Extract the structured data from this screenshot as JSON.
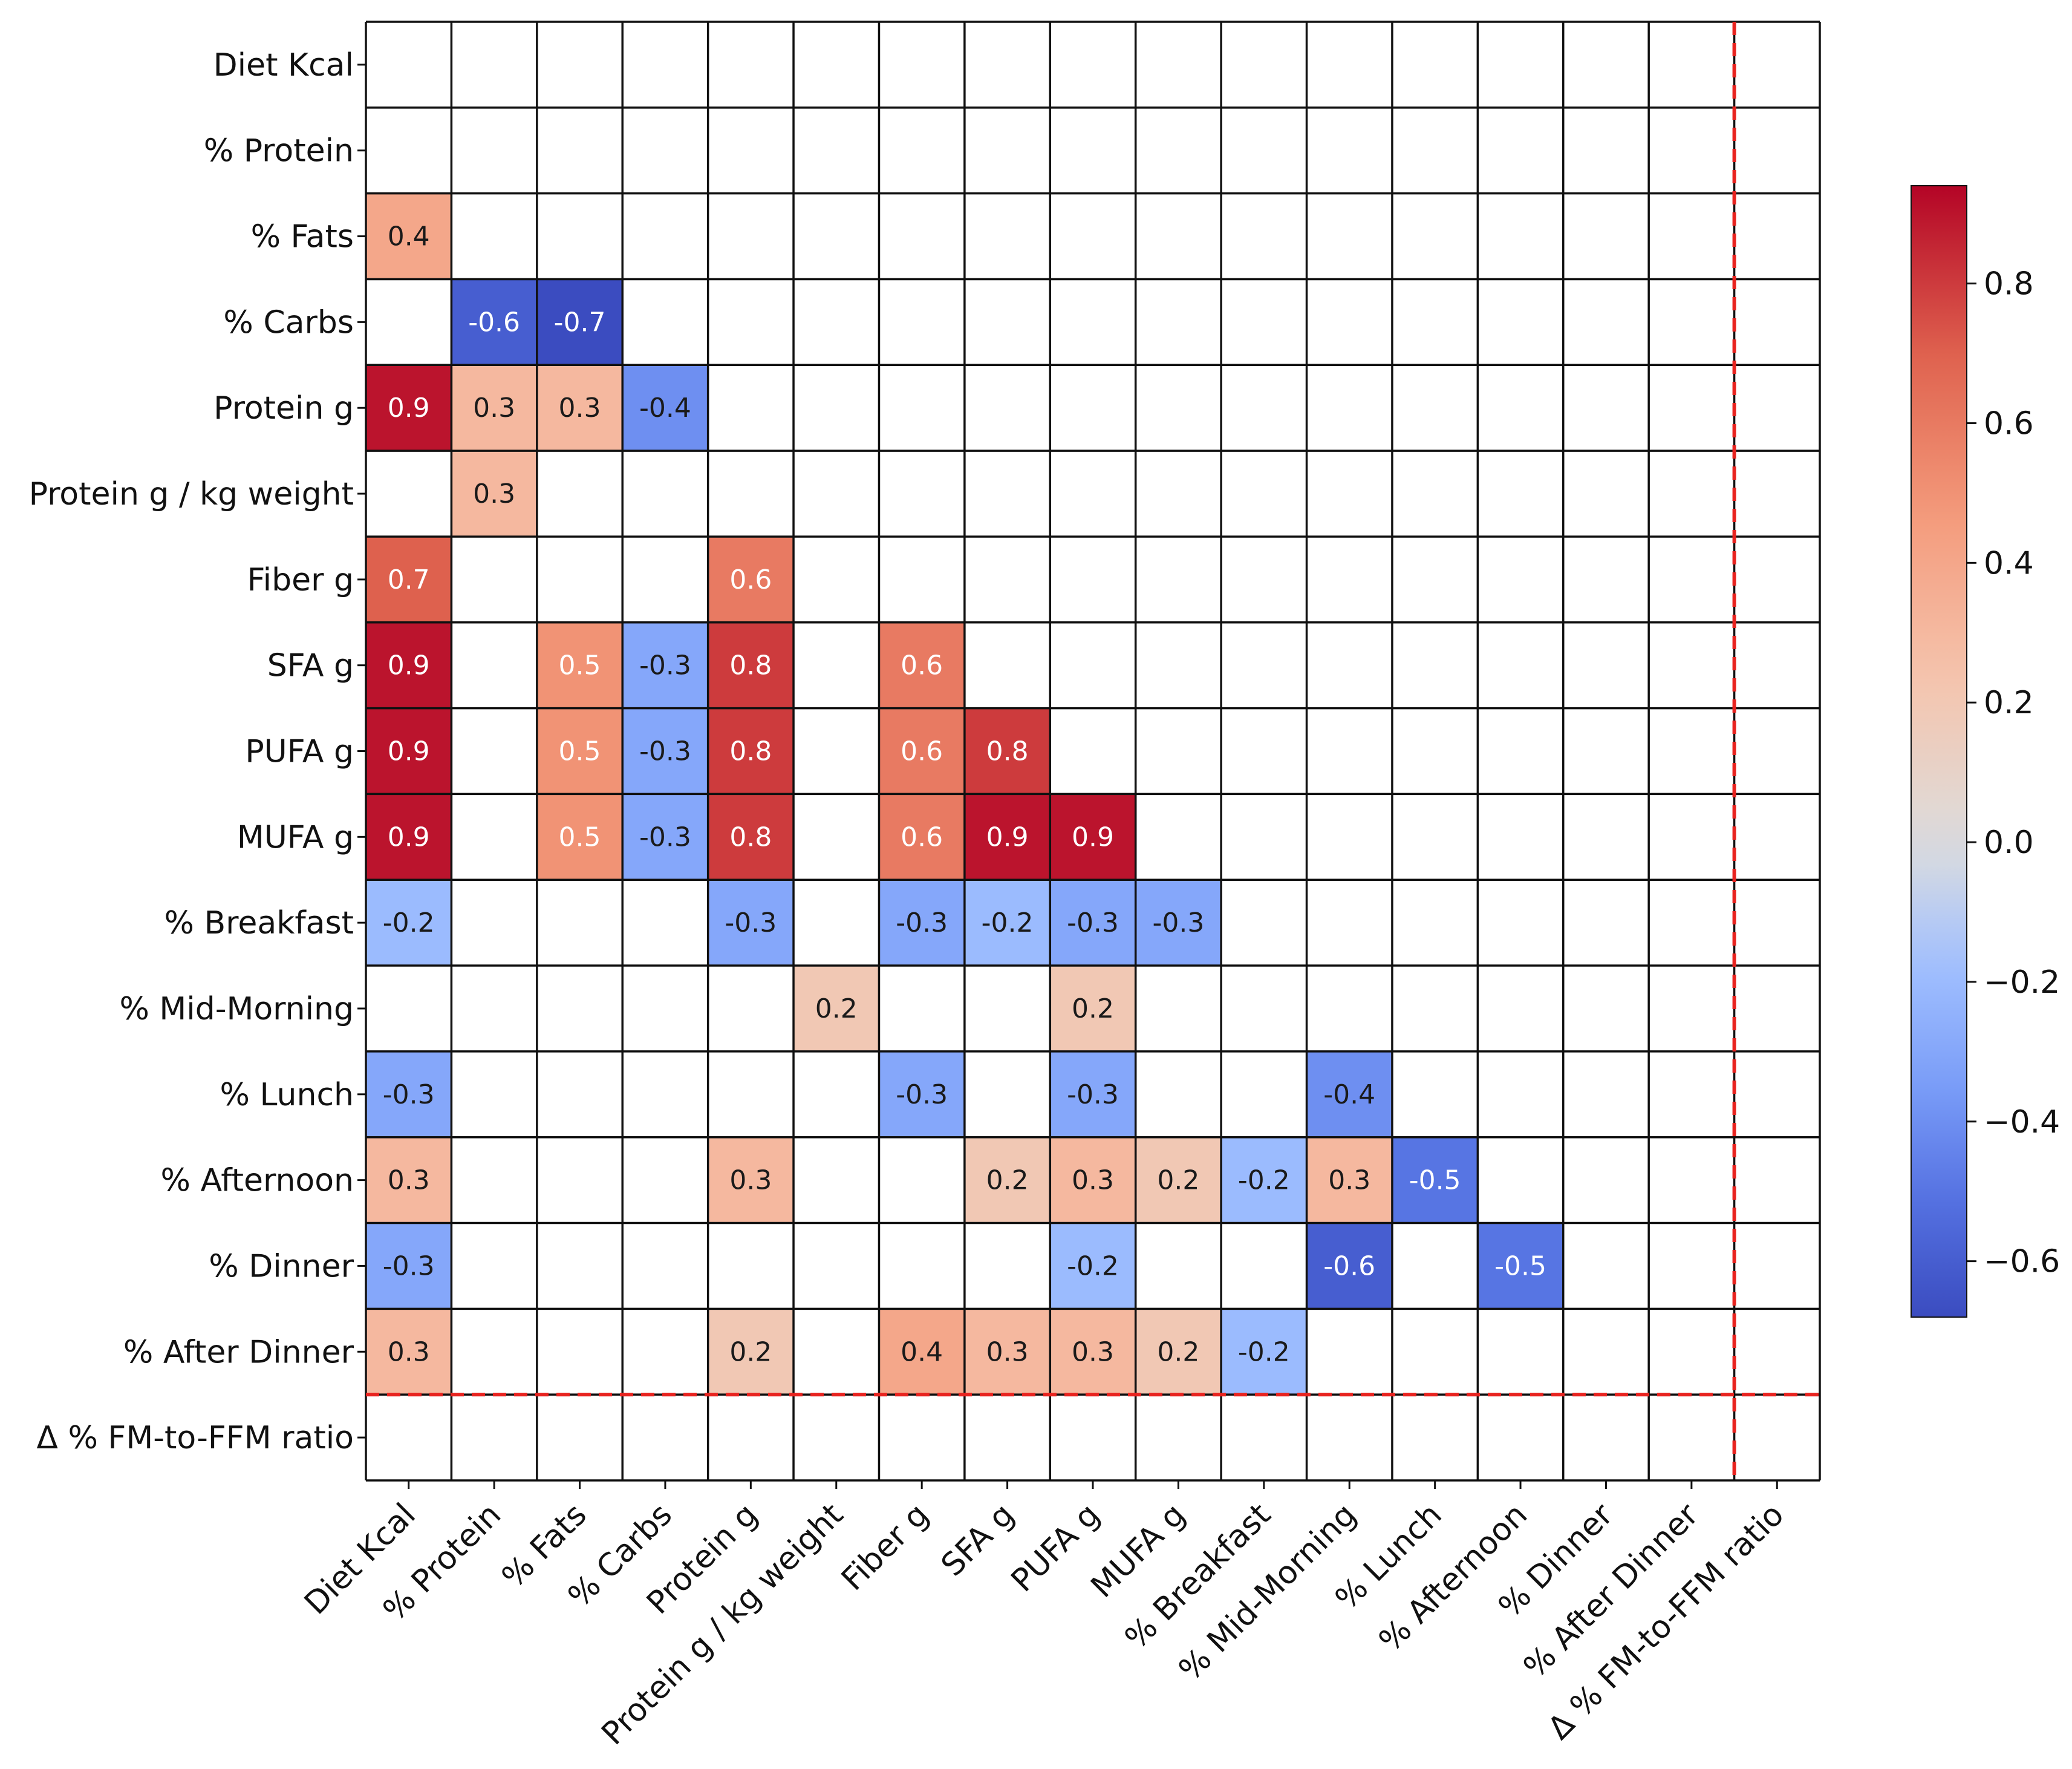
{
  "chart_data": {
    "type": "heatmap",
    "rows": [
      "Diet Kcal",
      "% Protein",
      "% Fats",
      "% Carbs",
      "Protein g",
      "Protein g / kg weight",
      "Fiber g",
      "SFA g",
      "PUFA g",
      "MUFA g",
      "% Breakfast",
      "% Mid-Morning",
      "% Lunch",
      "% Afternoon",
      "% Dinner",
      "% After Dinner",
      "Δ % FM-to-FFM ratio"
    ],
    "columns": [
      "Diet Kcal",
      "% Protein",
      "% Fats",
      "% Carbs",
      "Protein g",
      "Protein g / kg weight",
      "Fiber g",
      "SFA g",
      "PUFA g",
      "MUFA g",
      "% Breakfast",
      "% Mid-Morning",
      "% Lunch",
      "% Afternoon",
      "% Dinner",
      "% After Dinner",
      "Δ % FM-to-FFM ratio"
    ],
    "values": [
      [
        null,
        null,
        null,
        null,
        null,
        null,
        null,
        null,
        null,
        null,
        null,
        null,
        null,
        null,
        null,
        null,
        null
      ],
      [
        null,
        null,
        null,
        null,
        null,
        null,
        null,
        null,
        null,
        null,
        null,
        null,
        null,
        null,
        null,
        null,
        null
      ],
      [
        0.4,
        null,
        null,
        null,
        null,
        null,
        null,
        null,
        null,
        null,
        null,
        null,
        null,
        null,
        null,
        null,
        null
      ],
      [
        null,
        -0.6,
        -0.7,
        null,
        null,
        null,
        null,
        null,
        null,
        null,
        null,
        null,
        null,
        null,
        null,
        null,
        null
      ],
      [
        0.9,
        0.3,
        0.3,
        -0.4,
        null,
        null,
        null,
        null,
        null,
        null,
        null,
        null,
        null,
        null,
        null,
        null,
        null
      ],
      [
        null,
        0.3,
        null,
        null,
        null,
        null,
        null,
        null,
        null,
        null,
        null,
        null,
        null,
        null,
        null,
        null,
        null
      ],
      [
        0.7,
        null,
        null,
        null,
        0.6,
        null,
        null,
        null,
        null,
        null,
        null,
        null,
        null,
        null,
        null,
        null,
        null
      ],
      [
        0.9,
        null,
        0.5,
        -0.3,
        0.8,
        null,
        0.6,
        null,
        null,
        null,
        null,
        null,
        null,
        null,
        null,
        null,
        null
      ],
      [
        0.9,
        null,
        0.5,
        -0.3,
        0.8,
        null,
        0.6,
        0.8,
        null,
        null,
        null,
        null,
        null,
        null,
        null,
        null,
        null
      ],
      [
        0.9,
        null,
        0.5,
        -0.3,
        0.8,
        null,
        0.6,
        0.9,
        0.9,
        null,
        null,
        null,
        null,
        null,
        null,
        null,
        null
      ],
      [
        -0.2,
        null,
        null,
        null,
        -0.3,
        null,
        -0.3,
        -0.2,
        -0.3,
        -0.3,
        null,
        null,
        null,
        null,
        null,
        null,
        null
      ],
      [
        null,
        null,
        null,
        null,
        null,
        0.2,
        null,
        null,
        0.2,
        null,
        null,
        null,
        null,
        null,
        null,
        null,
        null
      ],
      [
        -0.3,
        null,
        null,
        null,
        null,
        null,
        -0.3,
        null,
        -0.3,
        null,
        null,
        -0.4,
        null,
        null,
        null,
        null,
        null
      ],
      [
        0.3,
        null,
        null,
        null,
        0.3,
        null,
        null,
        0.2,
        0.3,
        0.2,
        -0.2,
        0.3,
        -0.5,
        null,
        null,
        null,
        null
      ],
      [
        -0.3,
        null,
        null,
        null,
        null,
        null,
        null,
        null,
        -0.2,
        null,
        null,
        -0.6,
        null,
        -0.5,
        null,
        null,
        null
      ],
      [
        0.3,
        null,
        null,
        null,
        0.2,
        null,
        0.4,
        0.3,
        0.3,
        0.2,
        -0.2,
        null,
        null,
        null,
        null,
        null,
        null
      ],
      [
        null,
        null,
        null,
        null,
        null,
        null,
        null,
        null,
        null,
        null,
        null,
        null,
        null,
        null,
        null,
        null,
        null
      ]
    ],
    "colormap": "coolwarm",
    "color_range": [
      -0.68,
      0.94
    ],
    "colorbar_ticks": [
      "0.8",
      "0.6",
      "0.4",
      "0.2",
      "0.0",
      "−0.2",
      "−0.4",
      "−0.6"
    ],
    "colorbar_tick_values": [
      0.8,
      0.6,
      0.4,
      0.2,
      0.0,
      -0.2,
      -0.4,
      -0.6
    ],
    "reference_lines": "dashed red line separating the last row and the last column",
    "reference_line_color": "#e8231f",
    "grid": true
  }
}
